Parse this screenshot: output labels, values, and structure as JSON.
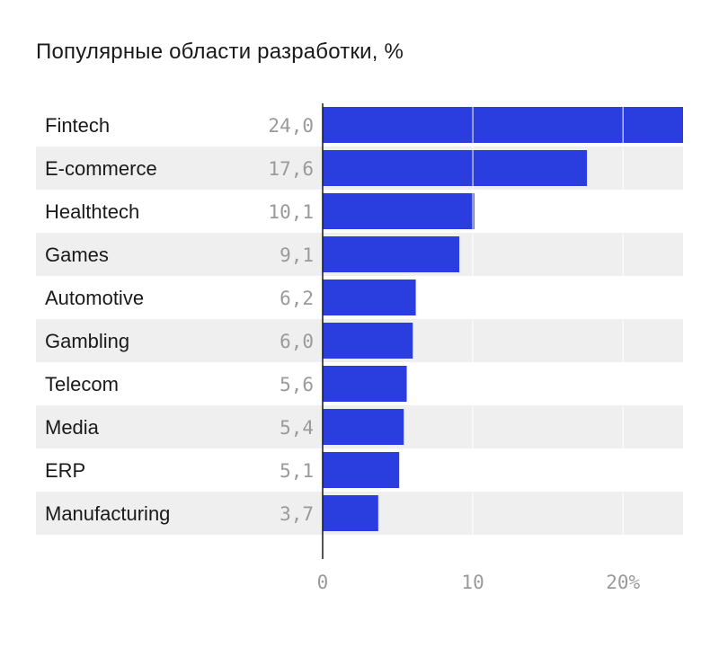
{
  "chart_data": {
    "type": "bar",
    "orientation": "horizontal",
    "title": "Популярные области разработки, %",
    "categories": [
      "Fintech",
      "E-commerce",
      "Healthtech",
      "Games",
      "Automotive",
      "Gambling",
      "Telecom",
      "Media",
      "ERP",
      "Manufacturing"
    ],
    "values": [
      24.0,
      17.6,
      10.1,
      9.1,
      6.2,
      6.0,
      5.6,
      5.4,
      5.1,
      3.7
    ],
    "value_labels": [
      "24,0",
      "17,6",
      "10,1",
      "9,1",
      "6,2",
      "6,0",
      "5,6",
      "5,4",
      "5,1",
      "3,7"
    ],
    "xticks": [
      "0",
      "10",
      "20%"
    ],
    "xtick_values": [
      0,
      10,
      20
    ],
    "xlim": [
      0,
      24
    ],
    "grid": true,
    "colors": {
      "bar": "#2a3ee0",
      "row_alt": "#efefef",
      "grid": "#ffffff",
      "axis": "#1a1a1a"
    }
  }
}
